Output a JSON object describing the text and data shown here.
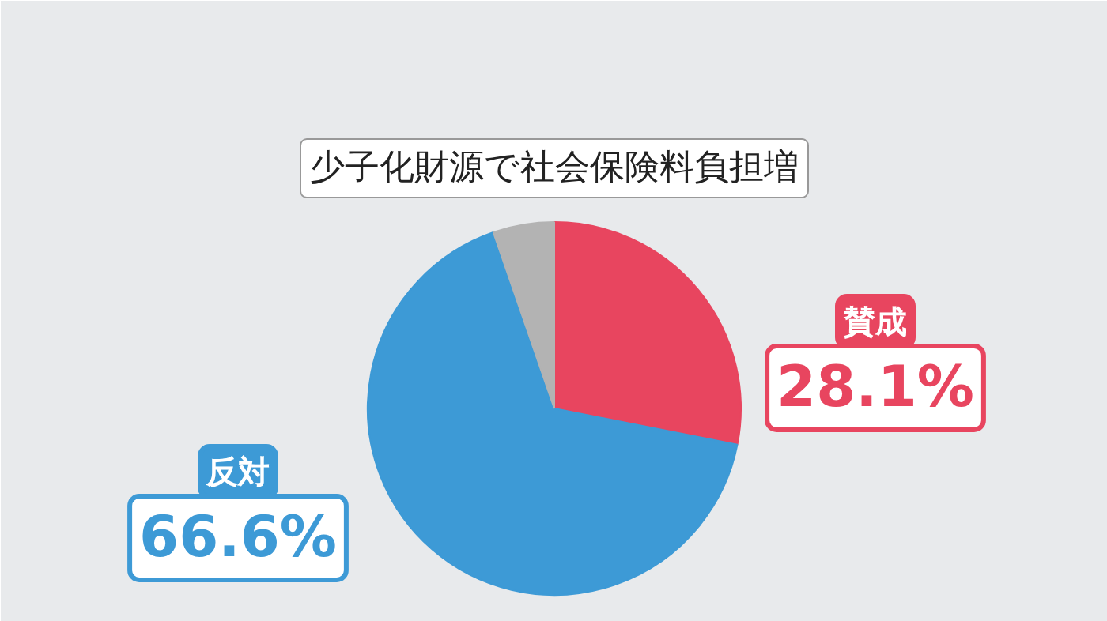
{
  "chart_data": {
    "type": "pie",
    "title": "少子化財源で社会保険料負担増",
    "categories": [
      "賛成",
      "反対",
      null
    ],
    "values": [
      28.1,
      66.6,
      5.3
    ],
    "colors": [
      "#e8455f",
      "#3d9ad6",
      "#b3b3b3"
    ],
    "value_labels": [
      "28.1%",
      "66.6%",
      null
    ]
  }
}
